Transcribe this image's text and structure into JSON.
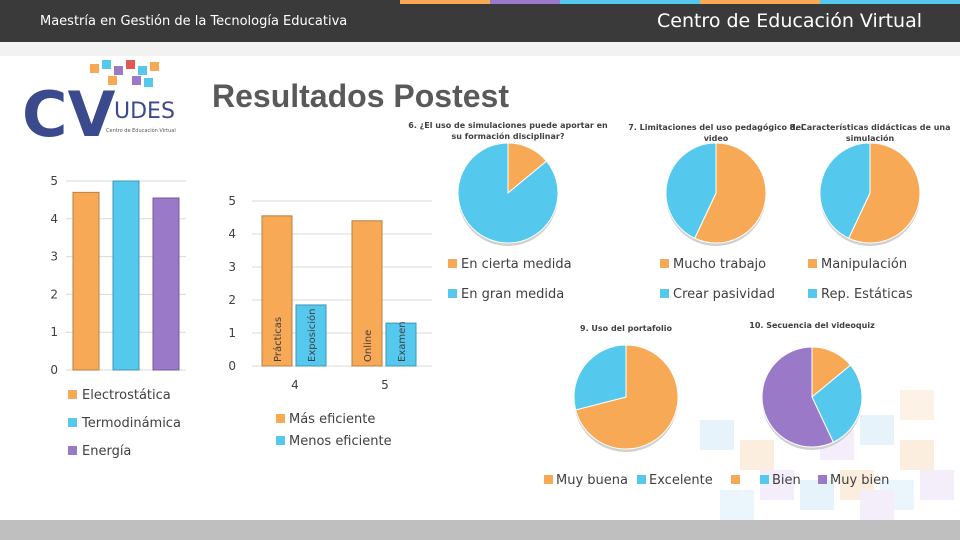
{
  "header": {
    "program": "Maestría en Gestión de la Tecnología Educativa",
    "center": "Centro de Educación Virtual"
  },
  "logo": {
    "letters": "CV",
    "name": "UDES",
    "subtitle": "Centro de Educación Virtual"
  },
  "slide_title": "Resultados Postest",
  "colors": {
    "orange": "#f7a955",
    "cyan": "#55c8ee",
    "purple": "#9b79c9",
    "header": "#3a3a3a"
  },
  "chart_data": [
    {
      "type": "bar",
      "categories": [
        "Electrostática",
        "Termodinámica",
        "Energía"
      ],
      "values": [
        4.7,
        5.0,
        4.55
      ],
      "ylim": [
        0,
        5
      ],
      "yticks": [
        0,
        1,
        2,
        3,
        4,
        5
      ],
      "legend": [
        "Electrostática",
        "Termodinámica",
        "Energía"
      ],
      "legend_position": "bottom",
      "grid": true
    },
    {
      "type": "bar",
      "categories": [
        "4",
        "5"
      ],
      "series": [
        {
          "name": "Más eficiente",
          "values": [
            4.55,
            4.4
          ],
          "labels": [
            "Prácticas",
            "Online"
          ]
        },
        {
          "name": "Menos eficiente",
          "values": [
            1.85,
            1.3
          ],
          "labels": [
            "Exposición",
            "Examen"
          ]
        }
      ],
      "ylim": [
        0,
        5
      ],
      "yticks": [
        0,
        1,
        2,
        3,
        4,
        5
      ],
      "legend_position": "bottom",
      "grid": true
    },
    {
      "type": "pie",
      "title": "6. ¿El uso de simulaciones puede aportar en su formación disciplinar?",
      "labels": [
        "En cierta medida",
        "En gran medida"
      ],
      "values": [
        14,
        86
      ]
    },
    {
      "type": "pie",
      "title": "7. Limitaciones del uso pedagógico del video",
      "labels": [
        "Mucho trabajo",
        "Crear pasividad"
      ],
      "values": [
        57,
        43
      ]
    },
    {
      "type": "pie",
      "title": "8. Características didácticas de una simulación",
      "labels": [
        "Manipulación",
        "Rep. Estáticas"
      ],
      "values": [
        57,
        43
      ]
    },
    {
      "type": "pie",
      "title": "9. Uso del portafolio",
      "labels": [
        "Muy buena",
        "Excelente"
      ],
      "values": [
        71,
        29
      ]
    },
    {
      "type": "pie",
      "title": "10. Secuencia del videoquiz",
      "labels": [
        "",
        "Bien",
        "Muy bien"
      ],
      "values": [
        14,
        29,
        57
      ]
    }
  ]
}
